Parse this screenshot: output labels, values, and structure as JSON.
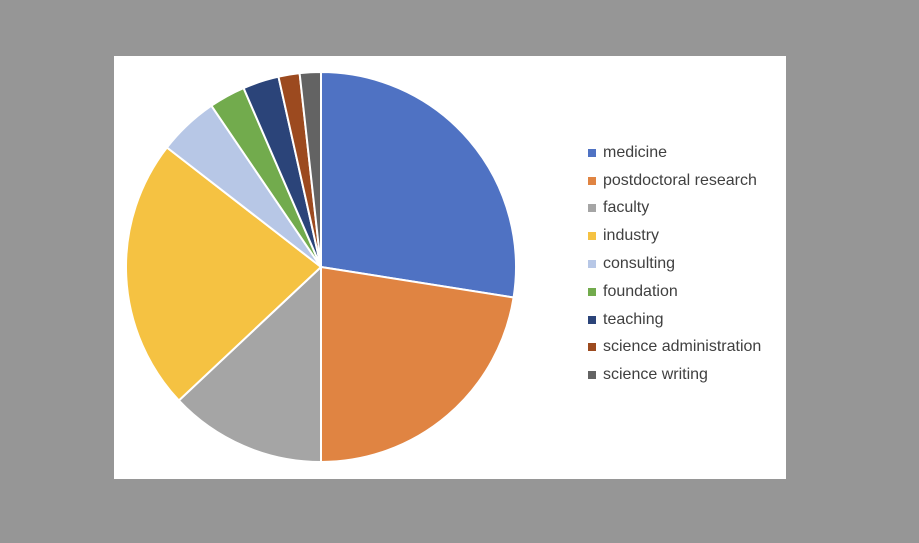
{
  "chart_data": {
    "type": "pie",
    "title": "",
    "legend_position": "right",
    "start_angle_deg": 0,
    "direction": "clockwise",
    "slice_border_color": "#ffffff",
    "slices": [
      {
        "label": "medicine",
        "value": 27.5,
        "color": "#4f72c3"
      },
      {
        "label": "postdoctoral research",
        "value": 22.5,
        "color": "#e08442"
      },
      {
        "label": "faculty",
        "value": 13.0,
        "color": "#a5a5a5"
      },
      {
        "label": "industry",
        "value": 22.5,
        "color": "#f5c242"
      },
      {
        "label": "consulting",
        "value": 5.0,
        "color": "#b7c7e6"
      },
      {
        "label": "foundation",
        "value": 3.0,
        "color": "#72ab4d"
      },
      {
        "label": "teaching",
        "value": 3.0,
        "color": "#2b4479"
      },
      {
        "label": "science administration",
        "value": 1.75,
        "color": "#9c4a1f"
      },
      {
        "label": "science writing",
        "value": 1.75,
        "color": "#636363"
      }
    ]
  }
}
